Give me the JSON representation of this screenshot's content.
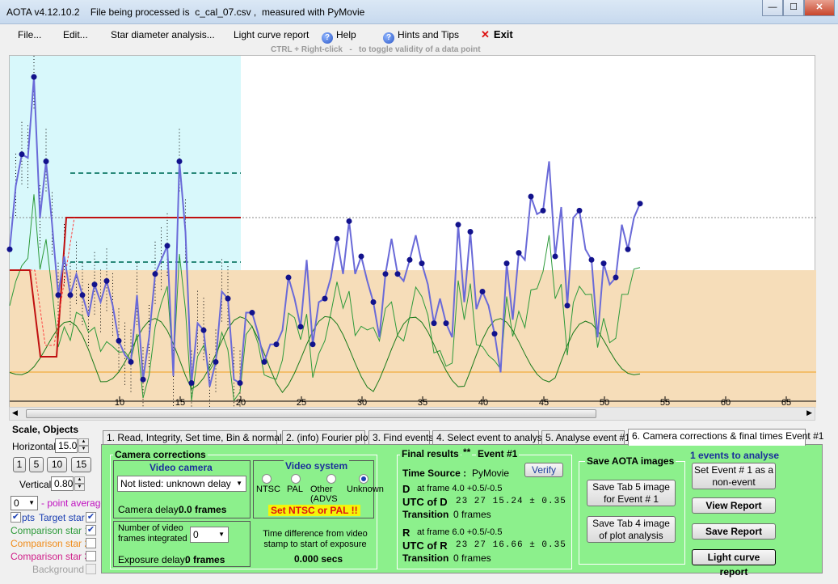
{
  "window": {
    "title": "AOTA v4.12.10.2    File being processed is  c_cal_07.csv ,  measured with PyMovie",
    "minimize": "—",
    "maximize": "☐",
    "close": "✕"
  },
  "menu": {
    "file": "File...",
    "edit": "Edit...",
    "star_diameter": "Star diameter analysis...",
    "light_curve_report": "Light curve report",
    "help": "Help",
    "hints": "Hints and Tips",
    "exit": "Exit"
  },
  "hint_text": "CTRL + Right-click   -   to toggle validity of a data point",
  "chart_data": {
    "type": "line",
    "x_ticks": [
      "10",
      "15",
      "20",
      "25",
      "30",
      "35",
      "40",
      "45",
      "50",
      "55",
      "60",
      "65"
    ],
    "target_star_y_fraction": [
      0.55,
      0.37,
      0.28,
      0.29,
      0.06,
      0.46,
      0.3,
      0.48,
      0.68,
      0.57,
      0.68,
      0.62,
      0.68,
      0.74,
      0.65,
      0.7,
      0.64,
      0.71,
      0.81,
      0.85,
      0.87,
      0.68,
      0.92,
      0.8,
      0.62,
      0.58,
      0.54,
      0.91,
      0.3,
      0.5,
      0.93,
      0.76,
      0.78,
      0.94,
      0.87,
      0.67,
      0.69,
      0.92,
      0.93,
      0.73,
      0.73,
      0.79,
      0.87,
      0.82,
      0.82,
      0.78,
      0.63,
      0.69,
      0.77,
      0.58,
      0.82,
      0.7,
      0.69,
      0.63,
      0.52,
      0.62,
      0.47,
      0.62,
      0.57,
      0.64,
      0.7,
      0.8,
      0.62,
      0.52,
      0.62,
      0.64,
      0.58,
      0.51,
      0.59,
      0.65,
      0.76,
      0.69,
      0.76,
      0.8,
      0.48,
      0.7,
      0.5,
      0.72,
      0.67,
      0.71,
      0.79,
      0.9,
      0.59,
      0.75,
      0.56,
      0.58,
      0.4,
      0.45,
      0.44,
      0.3,
      0.57,
      0.43,
      0.71,
      0.46,
      0.44,
      0.55,
      0.58,
      0.8,
      0.59,
      0.65,
      0.63,
      0.48,
      0.55,
      0.46,
      0.42
    ],
    "series": [
      {
        "name": "Target star",
        "color": "#1b1bcf"
      },
      {
        "name": "Comparison star 1",
        "color": "#1f8a1f"
      }
    ]
  },
  "scale": {
    "header": "Scale,  Objects",
    "horizontal_label": "Horizontal",
    "horizontal_value": "15.0",
    "presets": [
      "1",
      "5",
      "10",
      "15"
    ],
    "vertical_label": "Vertical",
    "vertical_value": "0.80",
    "point_avg_value": "0",
    "point_avg_label": "- point average"
  },
  "objects": {
    "pts_label": "pts",
    "target": "Target star",
    "comp1": "Comparison star 1",
    "comp2": "Comparison star 2",
    "comp3": "Comparison star 3",
    "background": "Background"
  },
  "tabs": [
    "1.  Read, Integrity, Set time, Bin & normalise",
    "2. (info)  Fourier plot",
    "3. Find events",
    "4. Select event to analyse",
    "5. Analyse event #1",
    "6. Camera corrections & final times Event #1"
  ],
  "camera_corrections": {
    "title": "Camera corrections",
    "video_camera_title": "Video camera",
    "camera_select": "Not listed: unknown delay",
    "camera_delay_label": "Camera delay:",
    "camera_delay_value": "0.0 frames",
    "video_system_title": "Video system",
    "systems": [
      "NTSC",
      "PAL",
      "Other (ADVS",
      "Unknown"
    ],
    "warning": "Set NTSC or PAL !!",
    "frames_integrated_label": "Number of video frames integrated",
    "frames_integrated_value": "0",
    "exposure_delay_label": "Exposure delay:",
    "exposure_delay_value": "0 frames",
    "time_diff_label": "Time difference from video stamp to start of exposure",
    "time_diff_value": "0.000 secs"
  },
  "final_results": {
    "title": "Final results",
    "stars": "**",
    "event": "Event #1",
    "time_source_label": "Time Source :",
    "time_source_value": "PyMovie",
    "verify": "Verify",
    "d_label": "D",
    "d_frame": "at frame 4.0  +0.5/-0.5",
    "utc_d_label": "UTC of D",
    "utc_d_value": "23 27 15.24 ± 0.35",
    "transition_label": "Transition",
    "transition_d": "0 frames",
    "r_label": "R",
    "r_frame": "at frame 6.0  +0.5/-0.5",
    "utc_r_label": "UTC of R",
    "utc_r_value": "23 27 16.66 ± 0.35",
    "transition_r": "0 frames"
  },
  "save_images": {
    "title": "Save AOTA images",
    "tab5": "Save Tab 5 image for Event # 1",
    "tab4": "Save Tab 4 image of plot analysis"
  },
  "events": {
    "title": "1 events to analyse",
    "set_event": "Set Event # 1 as a non-event",
    "view_report": "View Report",
    "save_report": "Save Report",
    "light_curve_report": "Light curve report"
  }
}
